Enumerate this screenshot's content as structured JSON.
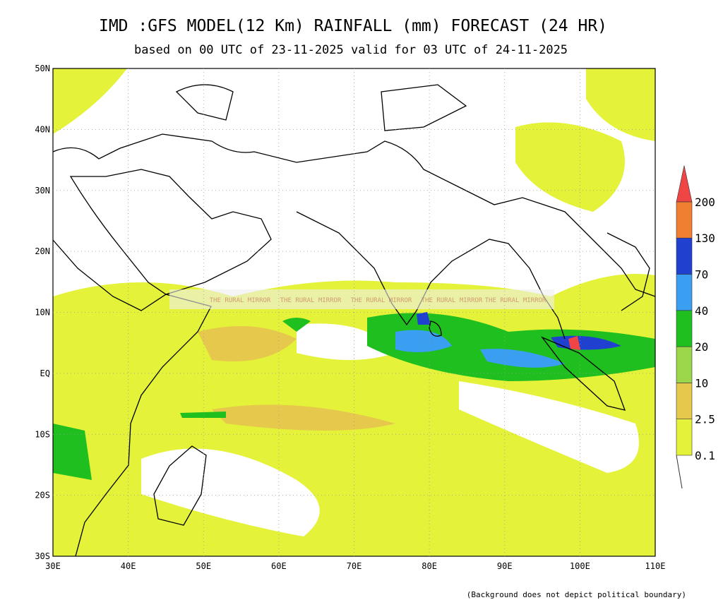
{
  "header": {
    "title": "IMD :GFS MODEL(12 Km) RAINFALL (mm) FORECAST (24 HR)",
    "subtitle": "based on 00 UTC of 23-11-2025 valid for 03 UTC of 24-11-2025"
  },
  "map": {
    "lat_labels": [
      "50N",
      "40N",
      "30N",
      "20N",
      "10N",
      "EQ",
      "10S",
      "20S",
      "30S"
    ],
    "lon_labels": [
      "30E",
      "40E",
      "50E",
      "60E",
      "70E",
      "80E",
      "90E",
      "100E",
      "110E"
    ],
    "watermark": "THE RURAL MIRROR"
  },
  "legend": {
    "levels": [
      "0.1",
      "2.5",
      "10",
      "20",
      "40",
      "70",
      "130",
      "200"
    ],
    "colors": [
      "#e4f23a",
      "#e6c84c",
      "#9cd64a",
      "#1fbf1f",
      "#3a9ff0",
      "#2040d0",
      "#f08030",
      "#f04545"
    ]
  },
  "footer": {
    "note": "(Background does not depict political boundary)"
  }
}
